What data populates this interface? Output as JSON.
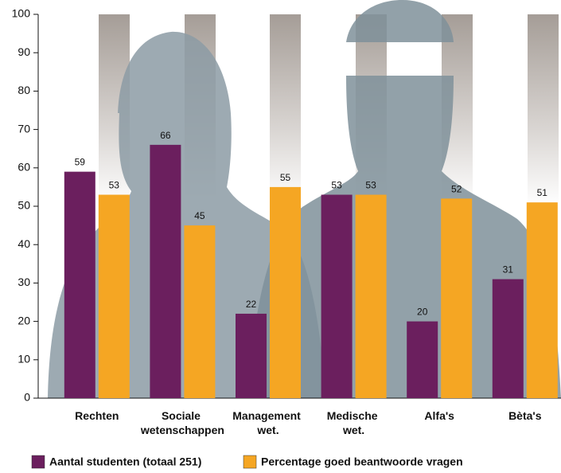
{
  "chart_data": {
    "type": "bar",
    "categories": [
      "Rechten",
      "Sociale wetenschappen",
      "Management wet.",
      "Medische wet.",
      "Alfa's",
      "Bèta's"
    ],
    "series": [
      {
        "name": "Aantal studenten (totaal 251)",
        "color": "#6b1f5e",
        "values": [
          59,
          66,
          22,
          53,
          20,
          31
        ]
      },
      {
        "name": "Percentage goed beantwoorde vragen",
        "color": "#f5a623",
        "values": [
          53,
          45,
          55,
          53,
          52,
          51
        ]
      }
    ],
    "ylim": [
      0,
      100
    ],
    "yticks": [
      0,
      10,
      20,
      30,
      40,
      50,
      60,
      70,
      80,
      90,
      100
    ],
    "grid": false
  }
}
